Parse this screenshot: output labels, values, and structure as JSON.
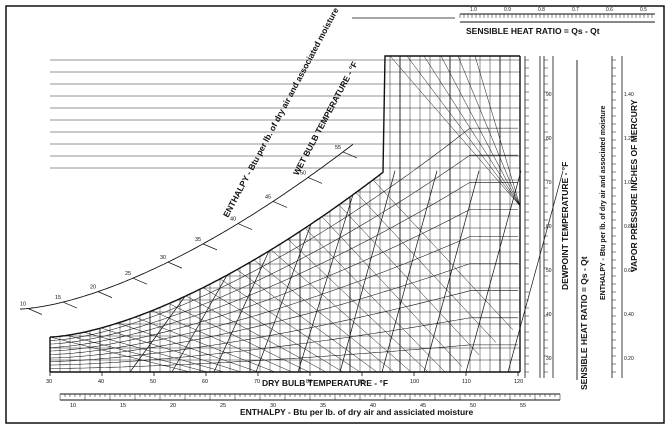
{
  "labels": {
    "enthalpy_diag": "ENTHALPY - Btu per lb. of dry air and associated moisture",
    "wet_bulb": "WET BULB TEMPERATURE - °F",
    "dry_bulb": "DRY BULB TEMPERATURE - °F",
    "enthalpy_bottom": "ENTHALPY - Btu per lb. of dry air and assiciated moisture",
    "shr_top": "SENSIBLE HEAT RATIO = Qs - Qt",
    "shr_right": "SENSIBLE HEAT RATIO = Qs - Qt",
    "dewpoint": "DEWPOINT TEMPERATURE - °F",
    "enthalpy_right": "ENTHALPY - Btu per lb. of dry air and associated moisture",
    "vapor_pressure": "VAPOR PRESSURE INCHES OF MERCURY"
  },
  "scales": {
    "dry_bulb_ticks": [
      "30",
      "40",
      "50",
      "60",
      "70",
      "80",
      "90",
      "100",
      "110",
      "120"
    ],
    "bottom_enthalpy_ticks": [
      "10",
      "15",
      "20",
      "25",
      "30",
      "35",
      "40",
      "45",
      "50",
      "55"
    ],
    "diag_enthalpy_ticks": [
      "10",
      "15",
      "20",
      "25",
      "30",
      "35",
      "40",
      "45",
      "50",
      "55"
    ],
    "dewpoint_ticks": [
      "30",
      "40",
      "50",
      "60",
      "70",
      "80",
      "90"
    ],
    "vapor_pressure_ticks": [
      "0.20",
      "0.40",
      "0.60",
      "0.80",
      "1.00",
      "1.20",
      "1.40"
    ],
    "shr_top_ticks": [
      "1.0",
      "0.9",
      "0.8",
      "0.7",
      "0.6",
      "0.5"
    ]
  },
  "colors": {
    "ink": "#111111",
    "paper": "#ffffff"
  }
}
